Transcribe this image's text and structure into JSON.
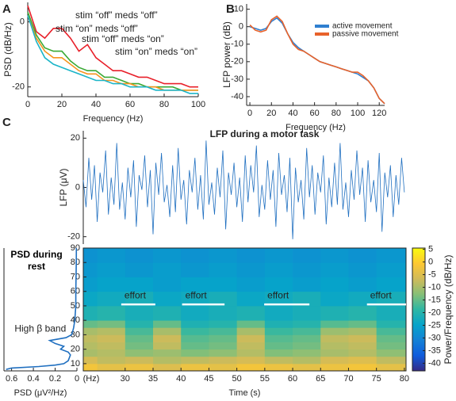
{
  "chart_data": [
    {
      "type": "line",
      "panel": "A",
      "xlabel": "Frequency  (Hz)",
      "ylabel": "PSD (dB/Hz)",
      "x": [
        0,
        5,
        10,
        15,
        20,
        25,
        30,
        35,
        40,
        45,
        50,
        55,
        60,
        65,
        70,
        75,
        80,
        85,
        90,
        95,
        100
      ],
      "xlim": [
        0,
        100
      ],
      "xticks": [
        0,
        20,
        40,
        60,
        80,
        100
      ],
      "ylim": [
        -23,
        6
      ],
      "yticks": [
        -20,
        0
      ],
      "series": [
        {
          "name": "stim “off” meds “off”",
          "color": "#e8202a",
          "values": [
            5,
            -3,
            -5,
            -2,
            -2,
            -5,
            -9,
            -7,
            -11,
            -13,
            -15,
            -15,
            -16,
            -17,
            -17,
            -18,
            -19,
            -19,
            -19,
            -20,
            -20
          ]
        },
        {
          "name": "stim “on” meds “off”",
          "color": "#3aa935",
          "values": [
            3,
            -4,
            -8,
            -9,
            -9,
            -12,
            -14,
            -15,
            -15,
            -17,
            -17,
            -18,
            -19,
            -19,
            -20,
            -20,
            -20,
            -20,
            -21,
            -21,
            -21
          ]
        },
        {
          "name": "stim “off” meds “on”",
          "color": "#f7941d",
          "values": [
            2,
            -5,
            -9,
            -11,
            -11,
            -13,
            -15,
            -16,
            -16,
            -18,
            -18,
            -19,
            -19,
            -20,
            -20,
            -20,
            -21,
            -21,
            -21,
            -21,
            -21
          ]
        },
        {
          "name": "stim “on” meds “on”",
          "color": "#1bb5c8",
          "values": [
            2,
            -6,
            -11,
            -13,
            -14,
            -15,
            -16,
            -17,
            -18,
            -18,
            -19,
            -19,
            -20,
            -20,
            -20,
            -21,
            -21,
            -21,
            -21,
            -22,
            -22
          ]
        }
      ]
    },
    {
      "type": "line",
      "panel": "B",
      "xlabel": "Frequency (Hz)",
      "ylabel": "LFP power (dB)",
      "x": [
        0,
        5,
        10,
        15,
        20,
        25,
        30,
        35,
        40,
        45,
        50,
        55,
        60,
        65,
        70,
        75,
        80,
        85,
        90,
        95,
        100,
        105,
        110,
        115,
        120,
        125
      ],
      "xlim": [
        -3,
        125
      ],
      "xticks": [
        0,
        20,
        40,
        60,
        80,
        100,
        120
      ],
      "ylim": [
        -45,
        13
      ],
      "yticks": [
        10,
        0,
        -10,
        -20,
        -30,
        -40
      ],
      "series": [
        {
          "name": "active movement",
          "color": "#2f7fd0",
          "values": [
            0,
            -1,
            -2,
            -1,
            3,
            5,
            2,
            -4,
            -9,
            -12,
            -14,
            -16,
            -18,
            -20,
            -21,
            -22,
            -23,
            -24,
            -25,
            -26,
            -27,
            -29,
            -31,
            -35,
            -41,
            -44
          ]
        },
        {
          "name": "passive movement",
          "color": "#e8622a",
          "values": [
            1,
            -2,
            -3,
            -2,
            4,
            6,
            3,
            -4,
            -10,
            -13,
            -14,
            -16,
            -18,
            -20,
            -21,
            -22,
            -23,
            -24,
            -25,
            -26,
            -26,
            -28,
            -31,
            -35,
            -41,
            -44
          ]
        }
      ]
    },
    {
      "type": "line",
      "panel": "C",
      "title": "LFP during a motor task",
      "ylabel": "LFP (μV)",
      "xlim": [
        22.5,
        80.3
      ],
      "ylim": [
        -23,
        23
      ],
      "yticks": [
        -20,
        0,
        20
      ],
      "x": [
        22.5,
        23,
        23.5,
        24,
        24.5,
        25,
        25.5,
        26,
        26.5,
        27,
        27.5,
        28,
        28.5,
        29,
        29.5,
        30,
        30.5,
        31,
        31.5,
        32,
        32.5,
        33,
        33.5,
        34,
        34.5,
        35,
        35.5,
        36,
        36.5,
        37,
        37.5,
        38,
        38.5,
        39,
        39.5,
        40,
        40.5,
        41,
        41.5,
        42,
        42.5,
        43,
        43.5,
        44,
        44.5,
        45,
        45.5,
        46,
        46.5,
        47,
        47.5,
        48,
        48.5,
        49,
        49.5,
        50,
        50.5,
        51,
        51.5,
        52,
        52.5,
        53,
        53.5,
        54,
        54.5,
        55,
        55.5,
        56,
        56.5,
        57,
        57.5,
        58,
        58.5,
        59,
        59.5,
        60,
        60.5,
        61,
        61.5,
        62,
        62.5,
        63,
        63.5,
        64,
        64.5,
        65,
        65.5,
        66,
        66.5,
        67,
        67.5,
        68,
        68.5,
        69,
        69.5,
        70,
        70.5,
        71,
        71.5,
        72,
        72.5,
        73,
        73.5,
        74,
        74.5,
        75,
        75.5,
        76,
        76.5,
        77,
        77.5,
        78,
        78.5,
        79,
        79.5,
        80
      ],
      "series": [
        {
          "color": "#1f6fc0",
          "values": [
            3,
            -8,
            12,
            -5,
            9,
            -14,
            6,
            -2,
            15,
            -11,
            4,
            -7,
            18,
            -9,
            2,
            -13,
            8,
            -4,
            11,
            -16,
            5,
            -1,
            13,
            -8,
            7,
            -19,
            10,
            -3,
            14,
            -6,
            1,
            -12,
            9,
            -10,
            16,
            -5,
            3,
            -15,
            7,
            -2,
            12,
            -9,
            5,
            -13,
            19,
            -7,
            2,
            -11,
            8,
            -4,
            15,
            -17,
            6,
            -3,
            10,
            -8,
            4,
            -14,
            13,
            -6,
            9,
            -2,
            17,
            -12,
            1,
            -9,
            11,
            -5,
            7,
            -16,
            14,
            -3,
            5,
            -10,
            12,
            -21,
            8,
            -6,
            3,
            -13,
            16,
            -4,
            9,
            -11,
            6,
            -2,
            13,
            -15,
            4,
            -8,
            10,
            -7,
            18,
            -9,
            2,
            -12,
            7,
            -5,
            15,
            -3,
            8,
            -14,
            11,
            -6,
            3,
            -10,
            14,
            -18,
            6,
            -4,
            9,
            -12,
            5,
            -7,
            12,
            -2
          ]
        }
      ]
    },
    {
      "type": "heatmap",
      "xlabel": "Time (s)",
      "ylabel": "(Hz)",
      "zlabel": "Power/Frequency (dB/Hz)",
      "xlim": [
        22.5,
        80.3
      ],
      "xticks": [
        30,
        35,
        40,
        45,
        50,
        55,
        60,
        65,
        70,
        75,
        80
      ],
      "ylim": [
        5,
        90
      ],
      "yticks": [
        10,
        20,
        30,
        40,
        50,
        60,
        70,
        80,
        90
      ],
      "zlim": [
        -43,
        5.5
      ],
      "zticks": [
        5,
        0,
        -5,
        -10,
        -15,
        -20,
        -25,
        -30,
        -35,
        -40
      ],
      "colormap": [
        "#352a87",
        "#0f5cdd",
        "#1481d6",
        "#06a4ca",
        "#2eb7a4",
        "#87bf77",
        "#d1bb59",
        "#fec832",
        "#f9fb0e"
      ],
      "x_bins": [
        22.5,
        25,
        30,
        35,
        40,
        45,
        50,
        55,
        60,
        65,
        70,
        75,
        80.3
      ],
      "y_bins": [
        5,
        10,
        15,
        20,
        25,
        30,
        35,
        40,
        50,
        60,
        70,
        80,
        90
      ],
      "z": [
        [
          -2,
          -4,
          -3,
          -5,
          -3,
          -4,
          -2,
          -3,
          -4,
          -3,
          -2,
          -4
        ],
        [
          -6,
          -8,
          -7,
          -9,
          -8,
          -7,
          -6,
          -8,
          -9,
          -6,
          -5,
          -8
        ],
        [
          -10,
          -9,
          -12,
          -11,
          -13,
          -12,
          -9,
          -13,
          -12,
          -10,
          -9,
          -12
        ],
        [
          -9,
          -8,
          -14,
          -8,
          -15,
          -14,
          -8,
          -15,
          -14,
          -9,
          -8,
          -14
        ],
        [
          -8,
          -7,
          -15,
          -7,
          -16,
          -15,
          -7,
          -16,
          -15,
          -8,
          -7,
          -15
        ],
        [
          -10,
          -9,
          -17,
          -10,
          -18,
          -17,
          -10,
          -18,
          -17,
          -11,
          -10,
          -17
        ],
        [
          -15,
          -14,
          -20,
          -15,
          -21,
          -20,
          -15,
          -21,
          -20,
          -16,
          -15,
          -20
        ],
        [
          -21,
          -20,
          -22,
          -21,
          -23,
          -22,
          -21,
          -23,
          -22,
          -21,
          -20,
          -22
        ],
        [
          -24,
          -23,
          -22,
          -24,
          -23,
          -22,
          -24,
          -23,
          -22,
          -24,
          -23,
          -22
        ],
        [
          -26,
          -25,
          -25,
          -26,
          -25,
          -25,
          -26,
          -25,
          -26,
          -25,
          -26,
          -25
        ],
        [
          -27,
          -26,
          -27,
          -26,
          -27,
          -26,
          -27,
          -26,
          -27,
          -26,
          -27,
          -26
        ],
        [
          -28,
          -27,
          -28,
          -27,
          -28,
          -27,
          -28,
          -27,
          -28,
          -27,
          -28,
          -27
        ]
      ],
      "annotations": [
        {
          "text": "effort",
          "x": [
            29.3,
            35.4
          ],
          "y": 51
        },
        {
          "text": "effort",
          "x": [
            40.2,
            47.8
          ],
          "y": 51
        },
        {
          "text": "effort",
          "x": [
            54.9,
            63
          ],
          "y": 51
        },
        {
          "text": "effort",
          "x": [
            73.3,
            80.3
          ],
          "y": 51
        }
      ]
    },
    {
      "type": "line",
      "orientation": "horizontal",
      "title": "PSD during rest",
      "xlabel": "PSD (μV²/Hz)",
      "xlim": [
        0.67,
        0
      ],
      "xticks": [
        0.6,
        0.4,
        0.2,
        0
      ],
      "ylim": [
        5,
        90
      ],
      "y": [
        6,
        7,
        8,
        9,
        10,
        12,
        14,
        16,
        18,
        20,
        22,
        24,
        26,
        28,
        30,
        32,
        35,
        40,
        50,
        60,
        70,
        80,
        90
      ],
      "series": [
        {
          "color": "#1f6fc0",
          "values": [
            0.65,
            0.6,
            0.35,
            0.2,
            0.12,
            0.08,
            0.07,
            0.06,
            0.08,
            0.15,
            0.12,
            0.2,
            0.25,
            0.1,
            0.05,
            0.04,
            0.03,
            0.02,
            0.01,
            0.01,
            0.008,
            0.006,
            0.005
          ]
        }
      ],
      "annotations": [
        {
          "text": "High β band",
          "x": 0.1,
          "y": 34
        }
      ]
    }
  ]
}
